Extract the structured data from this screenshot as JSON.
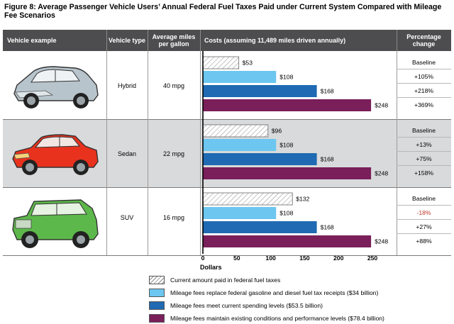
{
  "title": "Figure 8: Average Passenger Vehicle Users’ Annual Federal Fuel Taxes Paid under  Current System Compared with Mileage Fee Scenarios",
  "headers": {
    "vehicle_example": "Vehicle example",
    "vehicle_type": "Vehicle type",
    "avg_mpg": "Average miles per gallon",
    "costs": "Costs (assuming 11,489 miles driven annually)",
    "pct_change": "Percentage change"
  },
  "rows": [
    {
      "type": "Hybrid",
      "mpg": "40 mpg",
      "car_icon": "hybrid-car-icon",
      "car_color": "#b8c4cc",
      "bar_labels": [
        "$53",
        "$108",
        "$168",
        "$248"
      ],
      "pct": [
        "Baseline",
        "+105%",
        "+218%",
        "+369%"
      ],
      "pct_colors": [
        "#000000",
        "#000000",
        "#000000",
        "#000000"
      ]
    },
    {
      "type": "Sedan",
      "mpg": "22 mpg",
      "car_icon": "sedan-car-icon",
      "car_color": "#e8321e",
      "bar_labels": [
        "$96",
        "$108",
        "$168",
        "$248"
      ],
      "pct": [
        "Baseline",
        "+13%",
        "+75%",
        "+158%"
      ],
      "pct_colors": [
        "#000000",
        "#000000",
        "#000000",
        "#000000"
      ]
    },
    {
      "type": "SUV",
      "mpg": "16 mpg",
      "car_icon": "suv-car-icon",
      "car_color": "#5cb84a",
      "bar_labels": [
        "$132",
        "$108",
        "$168",
        "$248"
      ],
      "pct": [
        "Baseline",
        "-18%",
        "+27%",
        "+88%"
      ],
      "pct_colors": [
        "#000000",
        "#c0392b",
        "#000000",
        "#000000"
      ]
    }
  ],
  "chart_data": {
    "type": "bar",
    "orientation": "horizontal",
    "categories": [
      "Hybrid",
      "Sedan",
      "SUV"
    ],
    "series": [
      {
        "name": "Current amount paid in federal fuel taxes",
        "values": [
          53,
          96,
          132
        ],
        "color": "#ffffff",
        "pattern": "hatch"
      },
      {
        "name": "Mileage fees replace federal gasoline and diesel fuel tax receipts ($34 billion)",
        "values": [
          108,
          108,
          108
        ],
        "color": "#6cc6f0"
      },
      {
        "name": "Mileage fees meet current spending levels ($53.5 billion)",
        "values": [
          168,
          168,
          168
        ],
        "color": "#1f6ab3"
      },
      {
        "name": "Mileage fees maintain existing conditions and performance levels ($78.4 billion)",
        "values": [
          248,
          248,
          248
        ],
        "color": "#7a1f5a"
      }
    ],
    "xlabel": "Dollars",
    "xlim": [
      0,
      250
    ],
    "xticks": [
      0,
      50,
      100,
      150,
      200,
      250
    ],
    "legend": "bottom"
  },
  "colors": {
    "header_bg": "#4d4d4f",
    "row_bg_light": "#ffffff",
    "row_bg_gray": "#d9dadb",
    "negative": "#c0392b"
  }
}
